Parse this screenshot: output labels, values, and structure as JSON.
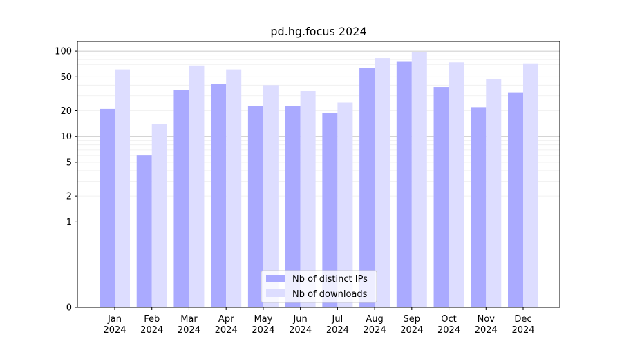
{
  "chart_data": {
    "type": "bar",
    "title": "pd.hg.focus 2024",
    "xlabel": "",
    "ylabel": "",
    "categories": [
      "Jan\n2024",
      "Feb\n2024",
      "Mar\n2024",
      "Apr\n2024",
      "May\n2024",
      "Jun\n2024",
      "Jul\n2024",
      "Aug\n2024",
      "Sep\n2024",
      "Oct\n2024",
      "Nov\n2024",
      "Dec\n2024"
    ],
    "series": [
      {
        "name": "Nb of distinct IPs",
        "color": "#aaaaff",
        "values": [
          21,
          6,
          35,
          41,
          23,
          23,
          19,
          63,
          75,
          38,
          22,
          33
        ]
      },
      {
        "name": "Nb of downloads",
        "color": "#ddddff",
        "values": [
          61,
          14,
          68,
          61,
          40,
          34,
          25,
          83,
          98,
          74,
          47,
          72
        ]
      }
    ],
    "yscale": "symlog",
    "yticks": [
      0,
      1,
      2,
      5,
      10,
      20,
      50,
      100
    ],
    "ylim": [
      0,
      130
    ],
    "grid": true,
    "legend_position": "bottom-center"
  }
}
